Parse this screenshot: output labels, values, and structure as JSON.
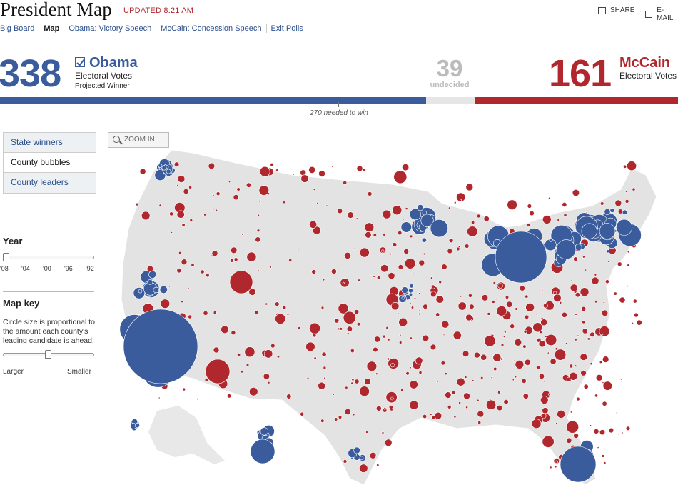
{
  "header": {
    "title": "President Map",
    "updated": "UPDATED 8:21 AM",
    "share": "SHARE",
    "email": "E-MAIL"
  },
  "nav": [
    "Big Board",
    "Map",
    "Obama: Victory Speech",
    "McCain: Concession Speech",
    "Exit Polls"
  ],
  "scoreboard": {
    "obama": {
      "votes": "338",
      "name": "Obama",
      "ev_label": "Electoral Votes",
      "status": "Projected Winner"
    },
    "undecided": {
      "votes": "39",
      "label": "undecided"
    },
    "mccain": {
      "votes": "161",
      "name": "McCain",
      "ev_label": "Electoral Votes"
    },
    "needed": "270 needed to win"
  },
  "views": [
    "State winners",
    "County bubbles",
    "County leaders"
  ],
  "zoom": "ZOOM IN",
  "year": {
    "heading": "Year",
    "labels": [
      "'08",
      "'04",
      "'00",
      "'96",
      "'92"
    ]
  },
  "map_key": {
    "heading": "Map key",
    "text": "Circle size is proportional to the amount each county's leading candidate is ahead.",
    "larger": "Larger",
    "smaller": "Smaller"
  },
  "colors": {
    "democrat": "#3a5c9d",
    "republican": "#b0282d",
    "undecided": "#e6e6e6",
    "land": "#e3e3e3"
  }
}
